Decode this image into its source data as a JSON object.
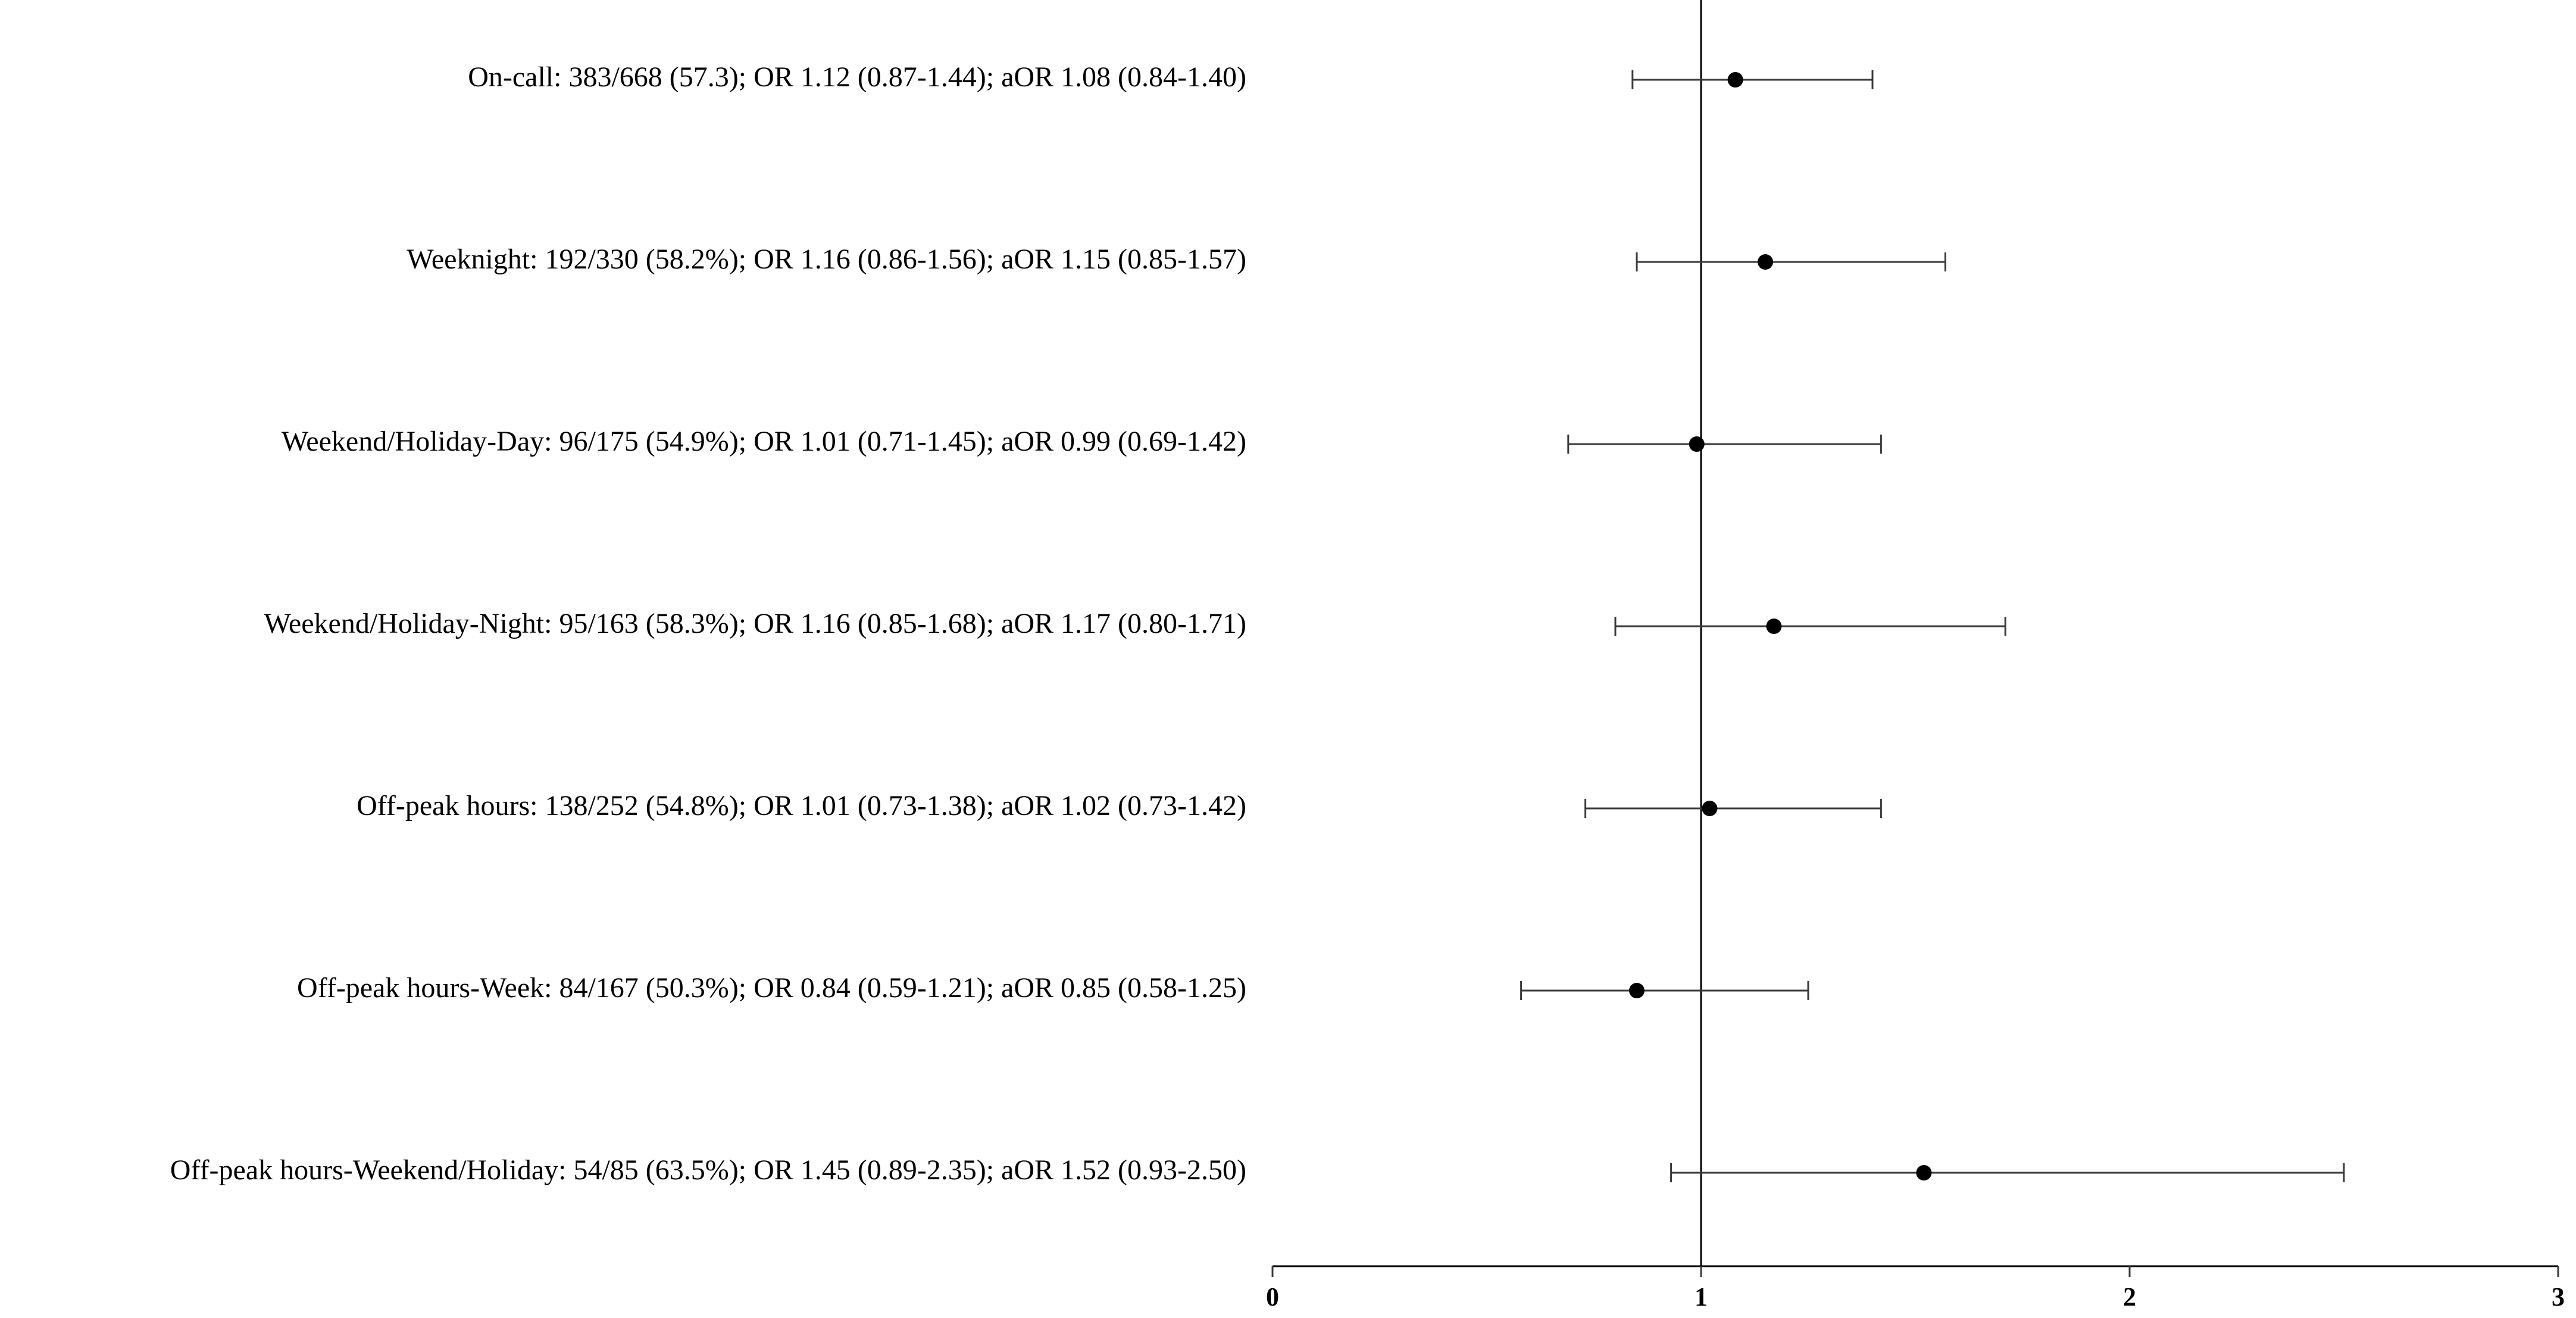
{
  "chart_data": {
    "type": "forest",
    "title": "",
    "xlabel": "",
    "ylabel": "",
    "xlim": [
      0,
      3
    ],
    "x_ticks": [
      "0",
      "1",
      "2",
      "3"
    ],
    "reference_line": 1,
    "grid": false,
    "rows": [
      {
        "label": "On-call:  383/668 (57.3); OR 1.12 (0.87-1.44); aOR 1.08 (0.84-1.40)",
        "estimate": 1.08,
        "lower": 0.84,
        "upper": 1.4
      },
      {
        "label": "Weeknight:  192/330 (58.2%); OR 1.16 (0.86-1.56); aOR 1.15 (0.85-1.57)",
        "estimate": 1.15,
        "lower": 0.85,
        "upper": 1.57
      },
      {
        "label": "Weekend/Holiday-Day:  96/175 (54.9%); OR 1.01 (0.71-1.45); aOR 0.99 (0.69-1.42)",
        "estimate": 0.99,
        "lower": 0.69,
        "upper": 1.42
      },
      {
        "label": "Weekend/Holiday-Night:  95/163 (58.3%); OR 1.16 (0.85-1.68); aOR 1.17 (0.80-1.71)",
        "estimate": 1.17,
        "lower": 0.8,
        "upper": 1.71
      },
      {
        "label": "Off-peak hours:  138/252 (54.8%); OR 1.01 (0.73-1.38); aOR 1.02 (0.73-1.42)",
        "estimate": 1.02,
        "lower": 0.73,
        "upper": 1.42
      },
      {
        "label": "Off-peak hours-Week:  84/167 (50.3%); OR 0.84 (0.59-1.21); aOR 0.85 (0.58-1.25)",
        "estimate": 0.85,
        "lower": 0.58,
        "upper": 1.25
      },
      {
        "label": "Off-peak hours-Weekend/Holiday:  54/85 (63.5%); OR 1.45 (0.89-2.35); aOR 1.52 (0.93-2.50)",
        "estimate": 1.52,
        "lower": 0.93,
        "upper": 2.5
      }
    ]
  }
}
